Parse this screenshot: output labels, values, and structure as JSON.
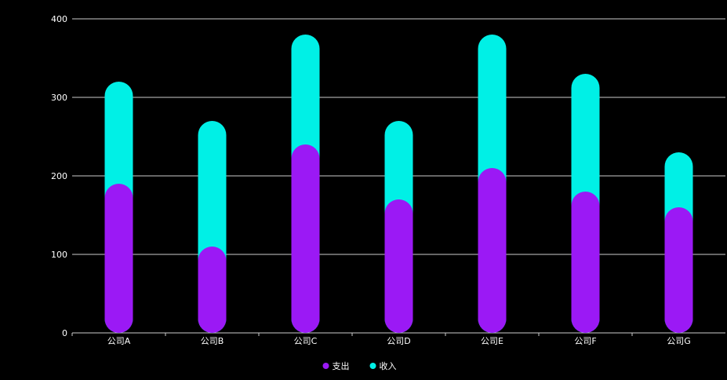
{
  "chart_data": {
    "type": "bar",
    "stacked": true,
    "categories": [
      "公司A",
      "公司B",
      "公司C",
      "公司D",
      "公司E",
      "公司F",
      "公司G"
    ],
    "series": [
      {
        "name": "支出",
        "color": "#9B19F5",
        "values": [
          190,
          110,
          240,
          170,
          210,
          180,
          160
        ]
      },
      {
        "name": "收入",
        "color": "#00F0E6",
        "values": [
          130,
          160,
          140,
          100,
          170,
          150,
          70
        ]
      }
    ],
    "ylim": [
      0,
      400
    ],
    "yticks": [
      0,
      100,
      200,
      300,
      400
    ],
    "grid": true,
    "legend_position": "bottom-center",
    "background": "#000000",
    "text_color": "#FFFFFF"
  }
}
